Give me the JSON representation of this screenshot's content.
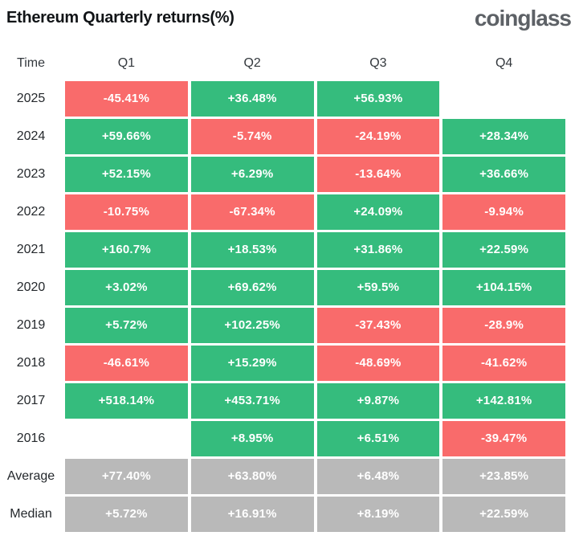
{
  "page": {
    "title": "Ethereum Quarterly returns(%)",
    "logo_text": "coinglass"
  },
  "colors": {
    "positive": "#35BC7D",
    "negative": "#F96B6B",
    "summary": "#B9B9B9",
    "cell_text": "#FFFFFF",
    "header_text": "#33383D",
    "label_text": "#24282C",
    "title_text": "#111417",
    "logo_text": "#5D6166"
  },
  "table": {
    "columns": [
      "Time",
      "Q1",
      "Q2",
      "Q3",
      "Q4"
    ],
    "rows": [
      {
        "label": "2025",
        "cells": [
          {
            "text": "-45.41%",
            "type": "negative"
          },
          {
            "text": "+36.48%",
            "type": "positive"
          },
          {
            "text": "+56.93%",
            "type": "positive"
          },
          {
            "text": "",
            "type": "empty"
          }
        ]
      },
      {
        "label": "2024",
        "cells": [
          {
            "text": "+59.66%",
            "type": "positive"
          },
          {
            "text": "-5.74%",
            "type": "negative"
          },
          {
            "text": "-24.19%",
            "type": "negative"
          },
          {
            "text": "+28.34%",
            "type": "positive"
          }
        ]
      },
      {
        "label": "2023",
        "cells": [
          {
            "text": "+52.15%",
            "type": "positive"
          },
          {
            "text": "+6.29%",
            "type": "positive"
          },
          {
            "text": "-13.64%",
            "type": "negative"
          },
          {
            "text": "+36.66%",
            "type": "positive"
          }
        ]
      },
      {
        "label": "2022",
        "cells": [
          {
            "text": "-10.75%",
            "type": "negative"
          },
          {
            "text": "-67.34%",
            "type": "negative"
          },
          {
            "text": "+24.09%",
            "type": "positive"
          },
          {
            "text": "-9.94%",
            "type": "negative"
          }
        ]
      },
      {
        "label": "2021",
        "cells": [
          {
            "text": "+160.7%",
            "type": "positive"
          },
          {
            "text": "+18.53%",
            "type": "positive"
          },
          {
            "text": "+31.86%",
            "type": "positive"
          },
          {
            "text": "+22.59%",
            "type": "positive"
          }
        ]
      },
      {
        "label": "2020",
        "cells": [
          {
            "text": "+3.02%",
            "type": "positive"
          },
          {
            "text": "+69.62%",
            "type": "positive"
          },
          {
            "text": "+59.5%",
            "type": "positive"
          },
          {
            "text": "+104.15%",
            "type": "positive"
          }
        ]
      },
      {
        "label": "2019",
        "cells": [
          {
            "text": "+5.72%",
            "type": "positive"
          },
          {
            "text": "+102.25%",
            "type": "positive"
          },
          {
            "text": "-37.43%",
            "type": "negative"
          },
          {
            "text": "-28.9%",
            "type": "negative"
          }
        ]
      },
      {
        "label": "2018",
        "cells": [
          {
            "text": "-46.61%",
            "type": "negative"
          },
          {
            "text": "+15.29%",
            "type": "positive"
          },
          {
            "text": "-48.69%",
            "type": "negative"
          },
          {
            "text": "-41.62%",
            "type": "negative"
          }
        ]
      },
      {
        "label": "2017",
        "cells": [
          {
            "text": "+518.14%",
            "type": "positive"
          },
          {
            "text": "+453.71%",
            "type": "positive"
          },
          {
            "text": "+9.87%",
            "type": "positive"
          },
          {
            "text": "+142.81%",
            "type": "positive"
          }
        ]
      },
      {
        "label": "2016",
        "cells": [
          {
            "text": "",
            "type": "empty"
          },
          {
            "text": "+8.95%",
            "type": "positive"
          },
          {
            "text": "+6.51%",
            "type": "positive"
          },
          {
            "text": "-39.47%",
            "type": "negative"
          }
        ]
      },
      {
        "label": "Average",
        "cells": [
          {
            "text": "+77.40%",
            "type": "summary"
          },
          {
            "text": "+63.80%",
            "type": "summary"
          },
          {
            "text": "+6.48%",
            "type": "summary"
          },
          {
            "text": "+23.85%",
            "type": "summary"
          }
        ]
      },
      {
        "label": "Median",
        "cells": [
          {
            "text": "+5.72%",
            "type": "summary"
          },
          {
            "text": "+16.91%",
            "type": "summary"
          },
          {
            "text": "+8.19%",
            "type": "summary"
          },
          {
            "text": "+22.59%",
            "type": "summary"
          }
        ]
      }
    ]
  },
  "chart_data": {
    "type": "heatmap",
    "title": "Ethereum Quarterly returns(%)",
    "columns": [
      "Q1",
      "Q2",
      "Q3",
      "Q4"
    ],
    "rows": [
      "2025",
      "2024",
      "2023",
      "2022",
      "2021",
      "2020",
      "2019",
      "2018",
      "2017",
      "2016",
      "Average",
      "Median"
    ],
    "values": [
      [
        -45.41,
        36.48,
        56.93,
        null
      ],
      [
        59.66,
        -5.74,
        -24.19,
        28.34
      ],
      [
        52.15,
        6.29,
        -13.64,
        36.66
      ],
      [
        -10.75,
        -67.34,
        24.09,
        -9.94
      ],
      [
        160.7,
        18.53,
        31.86,
        22.59
      ],
      [
        3.02,
        69.62,
        59.5,
        104.15
      ],
      [
        5.72,
        102.25,
        -37.43,
        -28.9
      ],
      [
        -46.61,
        15.29,
        -48.69,
        -41.62
      ],
      [
        518.14,
        453.71,
        9.87,
        142.81
      ],
      [
        null,
        8.95,
        6.51,
        -39.47
      ],
      [
        77.4,
        63.8,
        6.48,
        23.85
      ],
      [
        5.72,
        16.91,
        8.19,
        22.59
      ]
    ],
    "unit": "%",
    "color_coding": "positive=green, negative=red, summary-rows=gray"
  }
}
